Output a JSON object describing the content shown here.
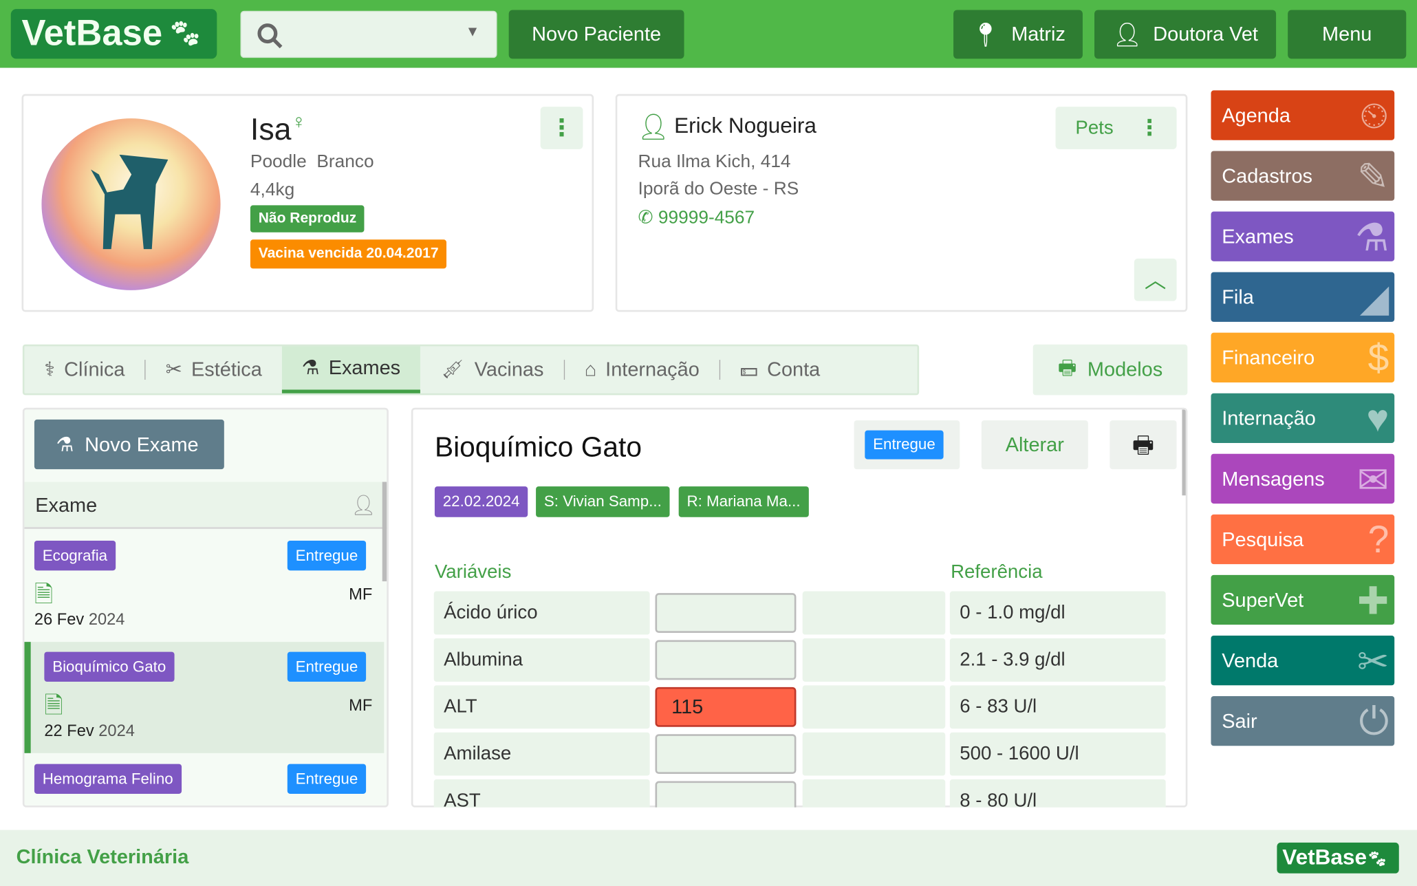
{
  "header": {
    "logo": "VetBase",
    "search_placeholder": "",
    "new_patient": "Novo Paciente",
    "location": "Matriz",
    "user": "Doutora Vet",
    "menu": "Menu"
  },
  "patient": {
    "name": "Isa",
    "sex_symbol": "♀",
    "breed": "Poodle",
    "color": "Branco",
    "weight": "4,4kg",
    "tag_reproduction": "Não Reproduz",
    "tag_vaccine": "Vacina vencida 20.04.2017"
  },
  "owner": {
    "name": "Erick Nogueira",
    "address": "Rua Ilma Kich, 414",
    "city": "Iporã do Oeste - RS",
    "phone": "99999-4567",
    "pets_label": "Pets"
  },
  "tabs": [
    {
      "label": "Clínica",
      "icon": "stethoscope-icon"
    },
    {
      "label": "Estética",
      "icon": "scissors-icon"
    },
    {
      "label": "Exames",
      "icon": "flask-icon",
      "active": true
    },
    {
      "label": "Vacinas",
      "icon": "syringe-icon"
    },
    {
      "label": "Internação",
      "icon": "clinic-icon"
    },
    {
      "label": "Conta",
      "icon": "money-icon"
    }
  ],
  "models_label": "Modelos",
  "exam_list": {
    "new_exam": "Novo Exame",
    "column_header": "Exame",
    "items": [
      {
        "name": "Ecografia",
        "status": "Entregue",
        "initials": "MF",
        "day": "26 Fev",
        "year": "2024"
      },
      {
        "name": "Bioquímico Gato",
        "status": "Entregue",
        "initials": "MF",
        "day": "22 Fev",
        "year": "2024",
        "selected": true
      },
      {
        "name": "Hemograma Felino",
        "status": "Entregue"
      }
    ]
  },
  "exam_detail": {
    "title": "Bioquímico Gato",
    "status": "Entregue",
    "edit_label": "Alterar",
    "date": "22.02.2024",
    "requester": "S: Vivian Samp...",
    "responsible": "R: Mariana Ma...",
    "col_variables": "Variáveis",
    "col_reference": "Referência",
    "rows": [
      {
        "name": "Ácido úrico",
        "value": "",
        "ref": "0 - 1.0 mg/dl"
      },
      {
        "name": "Albumina",
        "value": "",
        "ref": "2.1 - 3.9 g/dl"
      },
      {
        "name": "ALT",
        "value": "115",
        "ref": "6 - 83 U/l",
        "alert": true
      },
      {
        "name": "Amilase",
        "value": "",
        "ref": "500 - 1600 U/l"
      },
      {
        "name": "AST",
        "value": "",
        "ref": "8 - 80 U/l"
      }
    ]
  },
  "sidebar": [
    {
      "label": "Agenda",
      "color": "#d84315",
      "icon": "⏲"
    },
    {
      "label": "Cadastros",
      "color": "#8d6e63",
      "icon": "✎"
    },
    {
      "label": "Exames",
      "color": "#7e57c2",
      "icon": "⚗"
    },
    {
      "label": "Fila",
      "color": "#2f6690",
      "icon": "◢"
    },
    {
      "label": "Financeiro",
      "color": "#ffa726",
      "icon": "$"
    },
    {
      "label": "Internação",
      "color": "#2e8b7a",
      "icon": "♥"
    },
    {
      "label": "Mensagens",
      "color": "#ab47bc",
      "icon": "✉"
    },
    {
      "label": "Pesquisa",
      "color": "#ff7043",
      "icon": "?"
    },
    {
      "label": "SuperVet",
      "color": "#43a047",
      "icon": "✚"
    },
    {
      "label": "Venda",
      "color": "#00796b",
      "icon": "✂"
    },
    {
      "label": "Sair",
      "color": "#607d8b",
      "icon": "⏻"
    }
  ],
  "footer": {
    "clinic": "Clínica Veterinária",
    "logo": "VetBase"
  }
}
